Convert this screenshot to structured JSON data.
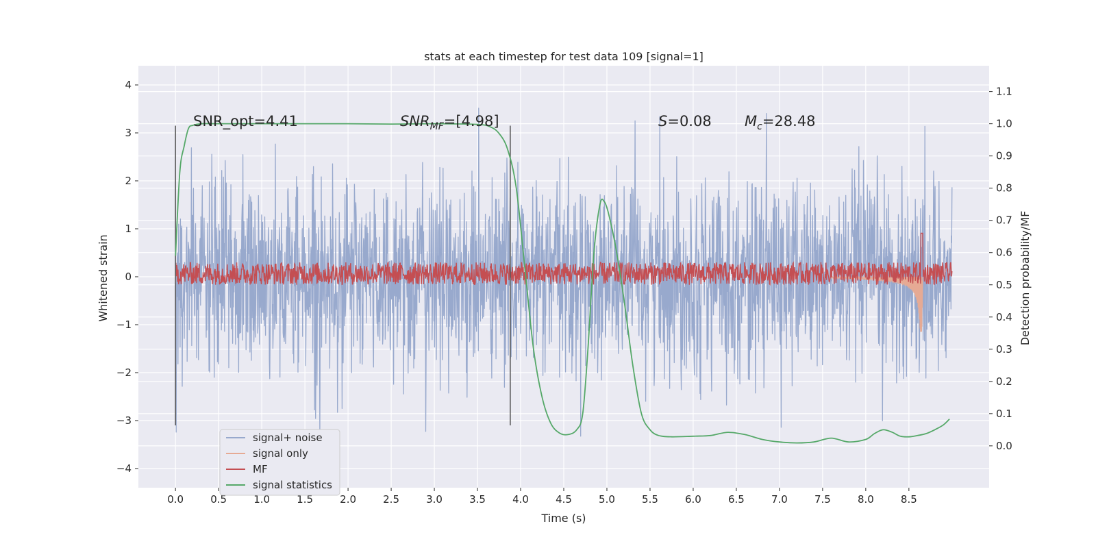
{
  "chart_data": {
    "type": "line",
    "title": "stats at each timestep for test data 109 [signal=1]",
    "xlabel": "Time (s)",
    "ylabel": "Whitened strain",
    "y2label": "Detection probability/MF",
    "xlim": [
      -0.43,
      9.43
    ],
    "ylim": [
      -4.4,
      4.4
    ],
    "y2lim": [
      -0.13,
      1.18
    ],
    "x_ticks": [
      "0.0",
      "0.5",
      "1.0",
      "1.5",
      "2.0",
      "2.5",
      "3.0",
      "3.5",
      "4.0",
      "4.5",
      "5.0",
      "5.5",
      "6.0",
      "6.5",
      "7.0",
      "7.5",
      "8.0",
      "8.5"
    ],
    "y_ticks": [
      "4",
      "3",
      "2",
      "1",
      "0",
      "−1",
      "−2",
      "−3",
      "−4"
    ],
    "y2_ticks": [
      "1.1",
      "1.0",
      "0.9",
      "0.8",
      "0.7",
      "0.6",
      "0.5",
      "0.4",
      "0.3",
      "0.2",
      "0.1",
      "0.0"
    ],
    "annotations": {
      "snr_opt": "SNR_opt=4.41",
      "snr_mf_name": "SNR",
      "snr_mf_sub": "MF",
      "snr_mf_value": "=[4.98]",
      "s_name": "S",
      "s_value": "=0.08",
      "mc_name": "M",
      "mc_sub": "c",
      "mc_value": "=28.48"
    },
    "markers": [
      {
        "x": 0.0,
        "y_range": [
          -3.1,
          3.15
        ]
      },
      {
        "x": 3.88,
        "y_range": [
          -3.1,
          3.15
        ]
      }
    ],
    "series": [
      {
        "name": "signal+ noise",
        "color": "#98a9cd",
        "axis": "left",
        "description": "whitened noise, ~N(0,1), time 0 to 9 s",
        "x_range": [
          0,
          9
        ],
        "amplitude_std": 1.0
      },
      {
        "name": "signal only",
        "color": "#e6aa94",
        "axis": "left",
        "description": "chirp growing toward merger at ~8.65 s",
        "points": [
          [
            7.8,
            -0.03
          ],
          [
            8.0,
            -0.07
          ],
          [
            8.2,
            -0.15
          ],
          [
            8.4,
            -0.28
          ],
          [
            8.55,
            -0.5
          ],
          [
            8.62,
            -0.75
          ],
          [
            8.65,
            -1.15
          ],
          [
            8.66,
            0.0
          ]
        ]
      },
      {
        "name": "MF",
        "color": "#c44e52",
        "axis": "right",
        "description": "matched filter output oscillating near 0.52-0.56",
        "x_range": [
          0,
          9
        ],
        "baseline": 0.535,
        "spike": {
          "x": 8.65,
          "y": 0.66
        }
      },
      {
        "name": "signal statistics",
        "color": "#55a868",
        "axis": "right",
        "x": [
          0.0,
          0.05,
          0.1,
          0.15,
          0.2,
          0.3,
          0.5,
          1.0,
          1.5,
          2.0,
          2.5,
          3.0,
          3.5,
          3.65,
          3.75,
          3.85,
          3.95,
          4.05,
          4.15,
          4.25,
          4.35,
          4.45,
          4.55,
          4.65,
          4.72,
          4.78,
          4.85,
          4.92,
          4.97,
          5.02,
          5.1,
          5.2,
          5.3,
          5.4,
          5.5,
          5.6,
          5.75,
          6.0,
          6.2,
          6.4,
          6.6,
          6.8,
          7.0,
          7.2,
          7.4,
          7.6,
          7.8,
          8.0,
          8.1,
          8.2,
          8.3,
          8.4,
          8.5,
          8.6,
          8.7,
          8.8,
          8.9,
          8.97
        ],
        "values": [
          0.59,
          0.85,
          0.93,
          0.985,
          0.995,
          1.0,
          1.0,
          1.0,
          1.0,
          1.0,
          0.999,
          1.0,
          0.998,
          0.99,
          0.97,
          0.92,
          0.8,
          0.55,
          0.3,
          0.15,
          0.07,
          0.04,
          0.035,
          0.05,
          0.1,
          0.3,
          0.6,
          0.75,
          0.758,
          0.72,
          0.62,
          0.45,
          0.25,
          0.1,
          0.05,
          0.032,
          0.028,
          0.03,
          0.032,
          0.042,
          0.035,
          0.02,
          0.012,
          0.009,
          0.012,
          0.024,
          0.012,
          0.02,
          0.038,
          0.05,
          0.043,
          0.03,
          0.028,
          0.032,
          0.038,
          0.05,
          0.065,
          0.083
        ]
      }
    ],
    "legend_position": "bottom-left"
  }
}
